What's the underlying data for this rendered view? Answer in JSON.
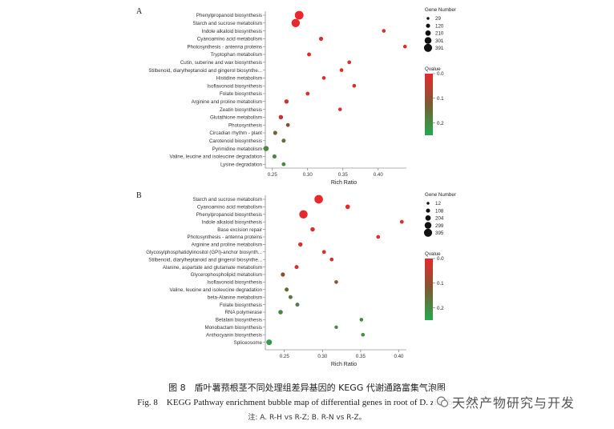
{
  "chart_data": [
    {
      "type": "scatter",
      "panel_label": "A",
      "xlabel": "Rich Ratio",
      "xlim": [
        0.24,
        0.44
      ],
      "xticks": [
        "0.25",
        "0.30",
        "0.35",
        "0.40"
      ],
      "terms": [
        "Phenylpropanoid biosynthesis",
        "Starch and sucrose metabolism",
        "Indole alkaloid biosynthesis",
        "Cyanoamino acid metabolism",
        "Photosynthesis - antenna proteins",
        "Tryptophan metabolism",
        "Cutin, suberine and wax biosynthesis",
        "Stilbenoid, diarylheptanoid and gingerol biosynthe...",
        "Histidine metabolism",
        "Isoflavonoid biosynthesis",
        "Folate biosynthesis",
        "Arginine and proline metabolism",
        "Zeatin biosynthesis",
        "Glutathione metabolism",
        "Photosynthesis",
        "Circadian rhythm - plant",
        "Carotenoid biosynthesis",
        "Pyrimidine metabolism",
        "Valine, leucine and isoleucine degradation",
        "Lysine degradation"
      ],
      "rich_ratio": [
        0.288,
        0.283,
        0.408,
        0.319,
        0.438,
        0.302,
        0.359,
        0.348,
        0.323,
        0.366,
        0.3,
        0.27,
        0.346,
        0.262,
        0.272,
        0.254,
        0.266,
        0.241,
        0.253,
        0.266
      ],
      "gene_number": [
        300,
        280,
        40,
        60,
        35,
        50,
        40,
        40,
        40,
        40,
        45,
        70,
        35,
        75,
        45,
        60,
        55,
        120,
        60,
        50
      ],
      "qvalue": [
        0.0,
        0.0,
        0.01,
        0.01,
        0.01,
        0.01,
        0.01,
        0.01,
        0.01,
        0.01,
        0.01,
        0.01,
        0.01,
        0.04,
        0.12,
        0.16,
        0.17,
        0.2,
        0.2,
        0.2
      ],
      "size_legend": {
        "title": "Gene Number",
        "values": [
          29,
          120,
          210,
          301,
          391
        ]
      },
      "color_legend": {
        "title": "Qvalue",
        "ticks": [
          "0.0",
          "0.1",
          "0.2"
        ],
        "domain": [
          0,
          0.25
        ],
        "low_color": "#e8282b",
        "high_color": "#22aa50"
      }
    },
    {
      "type": "scatter",
      "panel_label": "B",
      "xlabel": "Rich Ratio",
      "xlim": [
        0.225,
        0.41
      ],
      "xticks": [
        "0.25",
        "0.30",
        "0.35",
        "0.40"
      ],
      "terms": [
        "Starch and sucrose metabolism",
        "Cyanoamino acid metabolism",
        "Phenylpropanoid biosynthesis",
        "Indole alkaloid biosynthesis",
        "Base excision repair",
        "Photosynthesis - antenna proteins",
        "Arginine and proline metabolism",
        "Glycosylphosphatidylinositol (GPI)-anchor biosynth...",
        "Stilbenoid, diarylheptanoid and gingerol biosynthe...",
        "Alanine, aspartate and glutamate metabolism",
        "Glycerophospholipid metabolism",
        "Isoflavonoid biosynthesis",
        "Valine, leucine and isoleucine degradation",
        "beta-Alanine metabolism",
        "Folate biosynthesis",
        "RNA polymerase",
        "Betalain biosynthesis",
        "Monobactam biosynthesis",
        "Anthocyanin biosynthesis",
        "Spliceosome"
      ],
      "rich_ratio": [
        0.295,
        0.333,
        0.275,
        0.404,
        0.287,
        0.373,
        0.271,
        0.302,
        0.312,
        0.266,
        0.248,
        0.318,
        0.253,
        0.258,
        0.267,
        0.245,
        0.351,
        0.318,
        0.353,
        0.23
      ],
      "gene_number": [
        290,
        70,
        280,
        30,
        60,
        25,
        55,
        30,
        25,
        40,
        45,
        20,
        40,
        35,
        35,
        65,
        20,
        15,
        20,
        130
      ],
      "qvalue": [
        0.0,
        0.0,
        0.0,
        0.0,
        0.01,
        0.01,
        0.01,
        0.01,
        0.01,
        0.02,
        0.12,
        0.12,
        0.16,
        0.18,
        0.19,
        0.2,
        0.2,
        0.21,
        0.22,
        0.23
      ],
      "size_legend": {
        "title": "Gene Number",
        "values": [
          12,
          108,
          204,
          299,
          395
        ]
      },
      "color_legend": {
        "title": "Qvalue",
        "ticks": [
          "0.0",
          "0.1",
          "0.2"
        ],
        "domain": [
          0,
          0.25
        ],
        "low_color": "#e8282b",
        "high_color": "#22aa50"
      }
    }
  ],
  "caption": {
    "cn": "图 8　盾叶薯蓣根茎不同处理组差异基因的 KEGG 代谢通路富集气泡图",
    "en": "Fig. 8　KEGG Pathway enrichment bubble map of differential genes in root of D. zingiberensis",
    "note": "注: A. R-H vs R-Z; B. R-N vs R-Z。"
  },
  "watermark": {
    "text": "天然产物研究与开发",
    "icon": "wechat-logo-icon"
  }
}
